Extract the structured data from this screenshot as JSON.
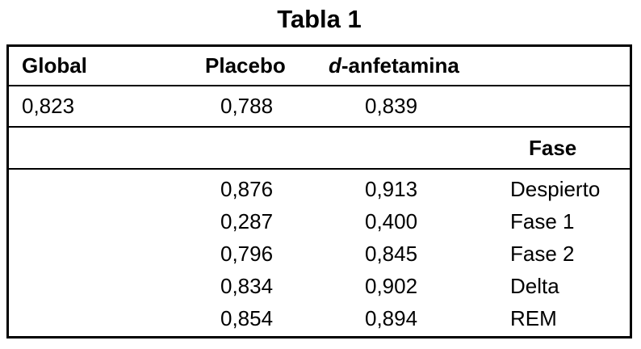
{
  "title": "Tabla 1",
  "colors": {
    "background": "#ffffff",
    "text": "#000000",
    "border": "#000000"
  },
  "table": {
    "header": {
      "global": "Global",
      "placebo": "Placebo",
      "damphetamine_italic": "d",
      "damphetamine_rest": "-anfetamina"
    },
    "overall": {
      "global": "0,823",
      "placebo": "0,788",
      "damphetamine": "0,839"
    },
    "phase_header": "Fase",
    "rows": [
      {
        "placebo": "0,876",
        "damphetamine": "0,913",
        "phase": "Despierto"
      },
      {
        "placebo": "0,287",
        "damphetamine": "0,400",
        "phase": "Fase 1"
      },
      {
        "placebo": "0,796",
        "damphetamine": "0,845",
        "phase": "Fase 2"
      },
      {
        "placebo": "0,834",
        "damphetamine": "0,902",
        "phase": "Delta"
      },
      {
        "placebo": "0,854",
        "damphetamine": "0,894",
        "phase": "REM"
      }
    ]
  }
}
